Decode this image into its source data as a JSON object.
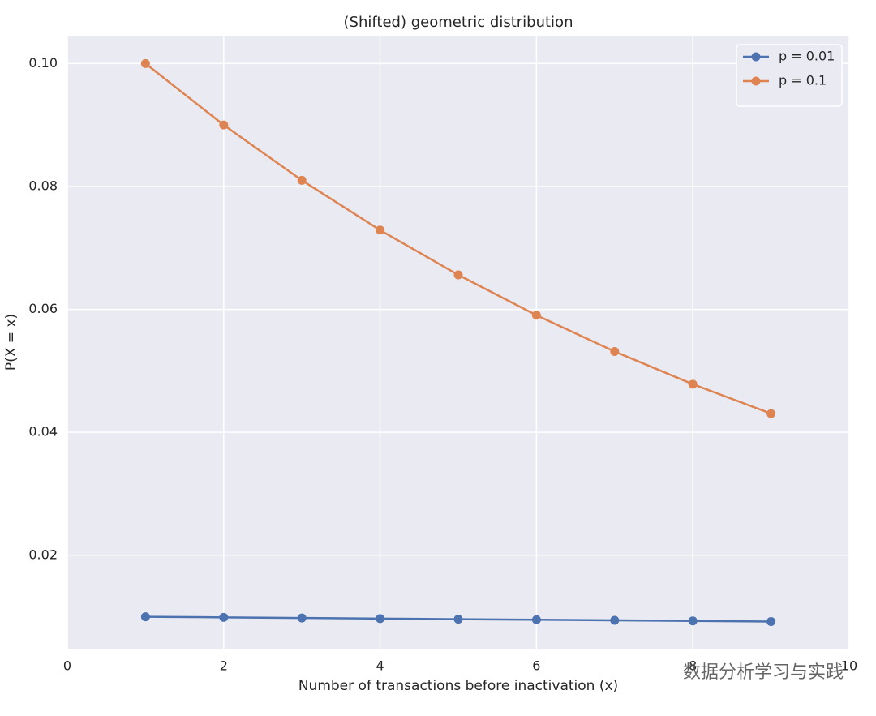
{
  "chart_data": {
    "type": "line",
    "title": "(Shifted) geometric distribution",
    "x_label": "Number of transactions before inactivation (x)",
    "y_label": "P(X = x)",
    "x": [
      1,
      2,
      3,
      4,
      5,
      6,
      7,
      8,
      9
    ],
    "series": [
      {
        "name": "p = 0.01",
        "color": "#4c72b0",
        "values": [
          0.01,
          0.0099,
          0.009801,
          0.00970299,
          0.0096059601,
          0.009509900499,
          0.00941480149401,
          0.0093206534790699,
          0.00922744694427921
        ]
      },
      {
        "name": "p = 0.1",
        "color": "#dd8452",
        "values": [
          0.1,
          0.09,
          0.081,
          0.0729,
          0.06561,
          0.059049,
          0.0531441,
          0.04782969,
          0.043046721
        ]
      }
    ],
    "xlim": [
      0,
      10
    ],
    "xticks": [
      0,
      2,
      4,
      6,
      8,
      10
    ],
    "ylim": [
      0.0048,
      0.1044
    ],
    "yticks": [
      0.02,
      0.04,
      0.06,
      0.08,
      {
        "value": 0.1,
        "label": "0.10"
      }
    ],
    "grid": true,
    "legend": "upper right",
    "watermark": "数据分析学习与实践"
  }
}
